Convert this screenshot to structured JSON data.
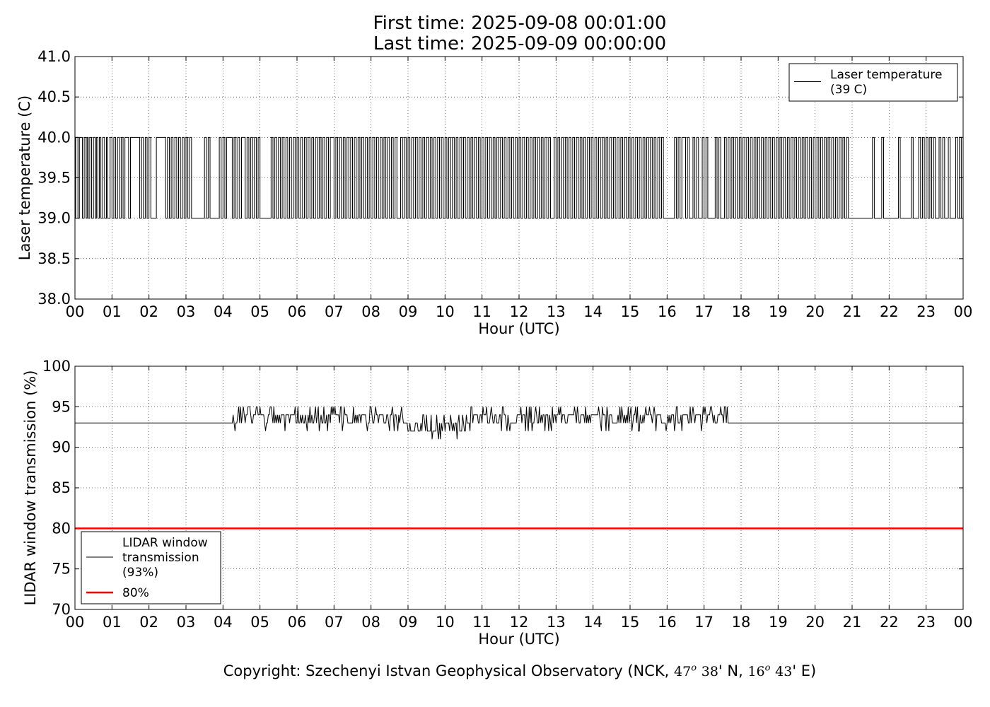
{
  "header": {
    "title_line1": "First time: 2025-09-08 00:01:00",
    "title_line2": "Last time: 2025-09-09 00:00:00"
  },
  "chart_data": [
    {
      "type": "line",
      "ylabel": "Laser temperature (C)",
      "xlabel": "Hour (UTC)",
      "xlim": [
        0,
        24
      ],
      "ylim": [
        38.0,
        41.0
      ],
      "xticks": [
        "00",
        "01",
        "02",
        "03",
        "04",
        "05",
        "06",
        "07",
        "08",
        "09",
        "10",
        "11",
        "12",
        "13",
        "14",
        "15",
        "16",
        "17",
        "18",
        "19",
        "20",
        "21",
        "22",
        "23",
        "00"
      ],
      "yticks": [
        "38.0",
        "38.5",
        "39.0",
        "39.5",
        "40.0",
        "40.5",
        "41.0"
      ],
      "grid": true,
      "legend_position": "upper-right",
      "series": [
        {
          "name": "Laser temperature (39 C)",
          "legend_lines": [
            "Laser temperature",
            "(39 C)"
          ],
          "color": "#000000",
          "description_values": [
            39.0,
            40.0
          ],
          "switch_hours": [
            0.02,
            0.08,
            0.12,
            0.2,
            0.25,
            0.3,
            0.33,
            0.36,
            0.4,
            0.45,
            0.5,
            0.55,
            0.58,
            0.62,
            0.66,
            0.7,
            0.75,
            0.8,
            0.85,
            0.88,
            0.95,
            1.0,
            1.05,
            1.1,
            1.15,
            1.2,
            1.25,
            1.3,
            1.35,
            1.45,
            1.5,
            1.75,
            1.8,
            1.85,
            1.9,
            1.95,
            2.0,
            2.05,
            2.2,
            2.45,
            2.5,
            2.55,
            2.6,
            2.65,
            2.7,
            2.75,
            2.8,
            2.85,
            2.9,
            2.95,
            3.0,
            3.05,
            3.1,
            3.15,
            3.5,
            3.55,
            3.6,
            3.65,
            3.9,
            3.95,
            4.0,
            4.05,
            4.1,
            4.25,
            4.3,
            4.35,
            4.4,
            4.45,
            4.5,
            4.6,
            4.65,
            4.7,
            4.75,
            4.8,
            4.85,
            4.9,
            4.95,
            5.0,
            5.3,
            5.35,
            5.4,
            5.45,
            5.5,
            5.55,
            5.6,
            5.65,
            5.7,
            5.75,
            5.8,
            5.85,
            5.9,
            5.95,
            6.0,
            6.05,
            6.1,
            6.15,
            6.2,
            6.25,
            6.3,
            6.35,
            6.4,
            6.45,
            6.5,
            6.55,
            6.6,
            6.65,
            6.7,
            6.75,
            6.8,
            6.85,
            6.9,
            7.0,
            7.05,
            7.1,
            7.15,
            7.2,
            7.25,
            7.3,
            7.35,
            7.4,
            7.45,
            7.5,
            7.55,
            7.6,
            7.65,
            7.7,
            7.75,
            7.8,
            7.85,
            7.9,
            7.95,
            8.0,
            8.05,
            8.1,
            8.15,
            8.2,
            8.25,
            8.3,
            8.35,
            8.4,
            8.45,
            8.5,
            8.55,
            8.6,
            8.65,
            8.7,
            8.8,
            8.85,
            8.9,
            8.95,
            9.0,
            9.05,
            9.1,
            9.15,
            9.2,
            9.25,
            9.3,
            9.35,
            9.4,
            9.45,
            9.5,
            9.55,
            9.6,
            9.65,
            9.7,
            9.75,
            9.8,
            9.85,
            9.9,
            9.95,
            10.0,
            10.05,
            10.1,
            10.15,
            10.2,
            10.25,
            10.3,
            10.35,
            10.4,
            10.45,
            10.5,
            10.55,
            10.6,
            10.65,
            10.7,
            10.75,
            10.8,
            10.85,
            10.9,
            10.95,
            11.0,
            11.05,
            11.1,
            11.15,
            11.2,
            11.25,
            11.3,
            11.35,
            11.4,
            11.45,
            11.5,
            11.55,
            11.6,
            11.65,
            11.7,
            11.75,
            11.8,
            11.85,
            11.9,
            11.95,
            12.0,
            12.05,
            12.1,
            12.15,
            12.2,
            12.25,
            12.3,
            12.35,
            12.4,
            12.45,
            12.5,
            12.55,
            12.6,
            12.65,
            12.7,
            12.75,
            12.8,
            12.85,
            12.95,
            13.0,
            13.05,
            13.1,
            13.15,
            13.2,
            13.25,
            13.3,
            13.35,
            13.4,
            13.45,
            13.5,
            13.55,
            13.6,
            13.65,
            13.7,
            13.75,
            13.8,
            13.85,
            13.9,
            13.95,
            14.0,
            14.05,
            14.1,
            14.15,
            14.2,
            14.25,
            14.3,
            14.35,
            14.4,
            14.45,
            14.5,
            14.55,
            14.6,
            14.65,
            14.7,
            14.75,
            14.8,
            14.85,
            14.9,
            14.95,
            15.0,
            15.05,
            15.1,
            15.15,
            15.2,
            15.25,
            15.3,
            15.35,
            15.4,
            15.45,
            15.5,
            15.55,
            15.6,
            15.65,
            15.7,
            15.75,
            15.8,
            15.85,
            15.9,
            16.2,
            16.25,
            16.3,
            16.35,
            16.4,
            16.5,
            16.55,
            16.6,
            16.7,
            16.75,
            16.8,
            16.85,
            16.95,
            17.0,
            17.05,
            17.1,
            17.3,
            17.35,
            17.4,
            17.45,
            17.55,
            17.6,
            17.65,
            17.7,
            17.75,
            17.8,
            17.85,
            17.9,
            17.95,
            18.0,
            18.05,
            18.1,
            18.15,
            18.2,
            18.25,
            18.3,
            18.35,
            18.4,
            18.45,
            18.5,
            18.55,
            18.6,
            18.65,
            18.7,
            18.75,
            18.8,
            18.85,
            18.9,
            18.95,
            19.0,
            19.05,
            19.1,
            19.15,
            19.2,
            19.25,
            19.3,
            19.35,
            19.4,
            19.45,
            19.5,
            19.55,
            19.6,
            19.65,
            19.7,
            19.75,
            19.8,
            19.85,
            19.9,
            19.95,
            20.0,
            20.05,
            20.1,
            20.15,
            20.2,
            20.25,
            20.3,
            20.35,
            20.4,
            20.45,
            20.5,
            20.55,
            20.6,
            20.65,
            20.7,
            20.75,
            20.8,
            20.85,
            20.9,
            21.55,
            21.6,
            21.8,
            21.85,
            22.25,
            22.3,
            22.6,
            22.65,
            22.8,
            22.85,
            22.9,
            22.95,
            23.0,
            23.05,
            23.1,
            23.15,
            23.2,
            23.25,
            23.35,
            23.4,
            23.45,
            23.5,
            23.6,
            23.65,
            23.8,
            23.85,
            23.9,
            23.95
          ]
        }
      ]
    },
    {
      "type": "line",
      "ylabel": "LIDAR window transmission (%)",
      "xlabel": "Hour (UTC)",
      "xlim": [
        0,
        24
      ],
      "ylim": [
        70,
        100
      ],
      "xticks": [
        "00",
        "01",
        "02",
        "03",
        "04",
        "05",
        "06",
        "07",
        "08",
        "09",
        "10",
        "11",
        "12",
        "13",
        "14",
        "15",
        "16",
        "17",
        "18",
        "19",
        "20",
        "21",
        "22",
        "23",
        "00"
      ],
      "yticks": [
        "70",
        "75",
        "80",
        "85",
        "90",
        "95",
        "100"
      ],
      "grid": true,
      "legend_position": "lower-left",
      "series": [
        {
          "name": "LIDAR window transmission (93%)",
          "legend_lines": [
            "LIDAR window",
            "transmission",
            "(93%)"
          ],
          "color": "#000000",
          "baseline": 93,
          "active_range": [
            4.25,
            17.65
          ],
          "fluctuation_min": 91,
          "fluctuation_max": 95
        },
        {
          "name": "80%",
          "legend_lines": [
            "80%"
          ],
          "color": "#ff0000",
          "constant": 80
        }
      ]
    }
  ],
  "footer": {
    "copyright_text": "Copyright: Szechenyi Istvan Geophysical Observatory (NCK,",
    "lat_deg": "47",
    "lat_min": "38",
    "lat_suffix": "' N,",
    "lon_deg": "16",
    "lon_min": "43",
    "lon_suffix": "' E)",
    "degree_symbol": "o"
  }
}
